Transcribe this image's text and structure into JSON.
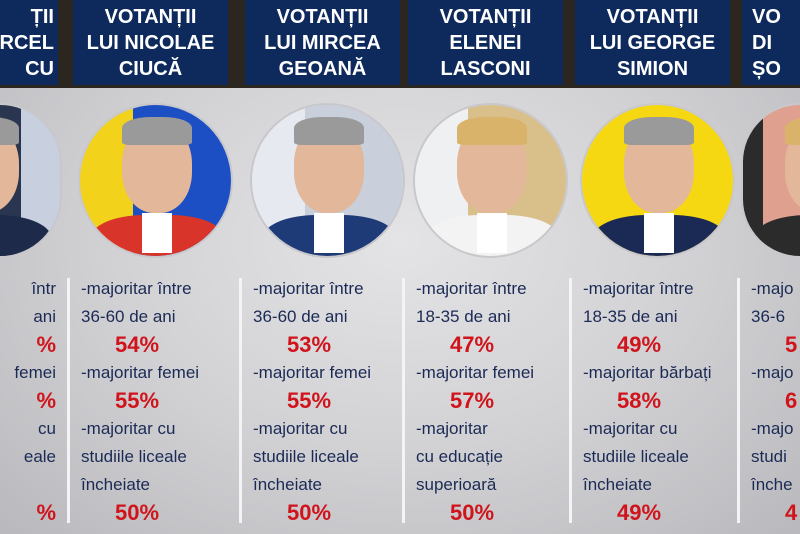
{
  "columns": [
    {
      "header": [
        "ȚII",
        "RCEL",
        "CU"
      ],
      "lines": [
        "într e",
        "ani"
      ],
      "stats": [
        {
          "label": [
            "într"
          ],
          "value": "%"
        }
      ]
    },
    {
      "header": [
        "VOTANȚII",
        "LUI NICOLAE",
        "CIUCĂ"
      ],
      "stats": [
        {
          "label": [
            "-majoritar între",
            "36-60 de ani"
          ],
          "value": "54%"
        },
        {
          "label": [
            "-majoritar femei"
          ],
          "value": "55%"
        },
        {
          "label": [
            "-majoritar cu",
            "studiile liceale",
            "încheiate"
          ],
          "value": "50%"
        }
      ],
      "colors": [
        "#f2d21b",
        "#1d4fc4",
        "#d8342a"
      ]
    },
    {
      "header": [
        "VOTANȚII",
        "LUI MIRCEA",
        "GEOANĂ"
      ],
      "stats": [
        {
          "label": [
            "-majoritar între",
            "36-60 de ani"
          ],
          "value": "53%"
        },
        {
          "label": [
            "-majoritar femei"
          ],
          "value": "55%"
        },
        {
          "label": [
            "-majoritar cu",
            "studiile liceale",
            "încheiate"
          ],
          "value": "50%"
        }
      ],
      "colors": [
        "#e6e9ef",
        "#c9d0dc",
        "#1e3b78"
      ]
    },
    {
      "header": [
        "VOTANȚII",
        "ELENEI",
        "LASCONI"
      ],
      "stats": [
        {
          "label": [
            "-majoritar între",
            "18-35 de ani"
          ],
          "value": "47%"
        },
        {
          "label": [
            "-majoritar femei"
          ],
          "value": "57%"
        },
        {
          "label": [
            "-majoritar",
            "cu educație",
            "superioară"
          ],
          "value": "50%"
        }
      ],
      "colors": [
        "#eef0f2",
        "#d9c08a",
        "#f3f3f3"
      ]
    },
    {
      "header": [
        "VOTANȚII",
        "LUI GEORGE",
        "SIMION"
      ],
      "stats": [
        {
          "label": [
            "-majoritar între",
            "18-35 de ani"
          ],
          "value": "49%"
        },
        {
          "label": [
            "-majoritar bărbați"
          ],
          "value": "58%"
        },
        {
          "label": [
            "-majoritar cu",
            "studiile liceale",
            "încheiate"
          ],
          "value": "49%"
        }
      ],
      "colors": [
        "#f6d812",
        "#f6d812",
        "#1b2a55"
      ]
    },
    {
      "header": [
        "VO",
        "DI",
        "ȘO"
      ],
      "stats": [
        {
          "label": [
            "-majo",
            "36-6"
          ],
          "value": "5"
        },
        {
          "label": [
            "-majo"
          ],
          "value": "6"
        },
        {
          "label": [
            "-majo",
            "studi",
            "înche"
          ],
          "value": "4"
        }
      ],
      "colors": [
        "#2b2b2b",
        "#e0a090",
        "#2b2b2b"
      ]
    }
  ],
  "first_column": {
    "header": [
      "ȚII",
      "RCEL",
      "CU"
    ],
    "lines": [
      "într",
      "ani",
      "%",
      "femei",
      "%",
      "cu",
      "eale",
      "",
      "%"
    ],
    "colors": [
      "#2a3550",
      "#c8d0e0",
      "#1e2a4a"
    ]
  }
}
